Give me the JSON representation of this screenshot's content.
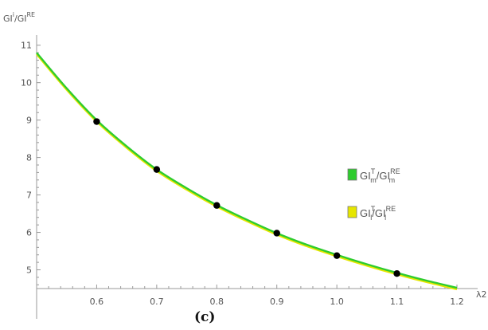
{
  "chart_data": {
    "type": "line",
    "ylabel": {
      "base1": "GI",
      "sup1": "i",
      "sep": "/GI",
      "sup2": "RE"
    },
    "xlabel": "λ2",
    "panel_label": "(c)",
    "xlim": [
      0.5,
      1.2
    ],
    "ylim": [
      4.5,
      11.1
    ],
    "x_ticks": [
      0.6,
      0.7,
      0.8,
      0.9,
      1.0,
      1.1,
      1.2
    ],
    "x_tick_labels": [
      "0.6",
      "0.7",
      "0.8",
      "0.9",
      "1.0",
      "1.1",
      "1.2"
    ],
    "y_ticks": [
      5,
      6,
      7,
      8,
      9,
      10,
      11
    ],
    "y_tick_labels": [
      "5",
      "6",
      "7",
      "8",
      "9",
      "10",
      "11"
    ],
    "series": [
      {
        "legend": {
          "a": "GI",
          "a_sup": "T",
          "a_sub": "m",
          "sep": "/GI",
          "b_sup": "RE",
          "b_sub": "m"
        },
        "color": "#2ecc2e",
        "x": [
          0.5,
          0.55,
          0.6,
          0.65,
          0.7,
          0.75,
          0.8,
          0.85,
          0.9,
          0.95,
          1.0,
          1.05,
          1.1,
          1.15,
          1.2
        ],
        "values": [
          10.8,
          9.85,
          9.0,
          8.3,
          7.68,
          7.18,
          6.73,
          6.34,
          5.98,
          5.67,
          5.4,
          5.15,
          4.92,
          4.71,
          4.52
        ]
      },
      {
        "legend": {
          "a": "GI",
          "a_sup": "T",
          "a_sub": "l",
          "sep": "/GI",
          "b_sup": "RE",
          "b_sub": "l"
        },
        "color": "#e6e600",
        "x": [
          0.5,
          0.55,
          0.6,
          0.65,
          0.7,
          0.75,
          0.8,
          0.85,
          0.9,
          0.95,
          1.0,
          1.05,
          1.1,
          1.15,
          1.2
        ],
        "values": [
          10.76,
          9.81,
          8.96,
          8.26,
          7.64,
          7.14,
          6.69,
          6.3,
          5.94,
          5.63,
          5.36,
          5.11,
          4.88,
          4.67,
          4.48
        ]
      }
    ],
    "points": {
      "x": [
        0.6,
        0.7,
        0.8,
        0.9,
        1.0,
        1.1
      ],
      "values": [
        8.96,
        7.68,
        6.72,
        5.98,
        5.38,
        4.9
      ]
    },
    "legend_position": "right",
    "grid": false
  }
}
